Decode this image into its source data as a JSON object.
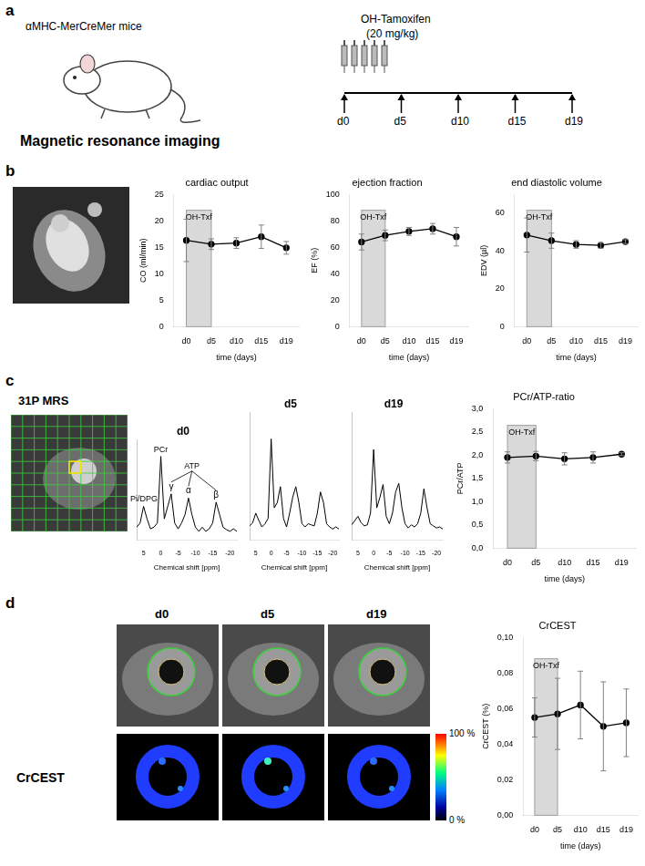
{
  "panel_labels": [
    "a",
    "b",
    "c",
    "d"
  ],
  "panel_a": {
    "mouse_label": "αMHC-MerCreMer mice",
    "method": "Magnetic resonance imaging",
    "drug": "OH-Tamoxifen",
    "dose": "(20 mg/kg)",
    "injections": 5,
    "timeline": [
      "d0",
      "d5",
      "d10",
      "d15",
      "d19"
    ]
  },
  "panel_c": {
    "label": "31P MRS"
  },
  "panel_d": {
    "label": "CrCEST",
    "image_days": [
      "d0",
      "d5",
      "d19"
    ],
    "colorbar": {
      "range": [
        0,
        100
      ],
      "ticks": [
        {
          "value": 0,
          "label": "0 %"
        },
        {
          "value": 100,
          "label": "100 %"
        }
      ]
    }
  },
  "chart_data": [
    {
      "type": "line",
      "title": "cardiac output",
      "categories": [
        "d0",
        "d5",
        "d10",
        "d15",
        "d19"
      ],
      "values": [
        16.3,
        15.6,
        15.8,
        17.0,
        14.9
      ],
      "errors": [
        4.0,
        1.0,
        1.0,
        2.2,
        1.2
      ],
      "x_label": "time (days)",
      "y_label": "CO (ml/min)",
      "ylim": [
        0,
        25
      ],
      "yticks": [
        0,
        5,
        10,
        15,
        20,
        25
      ],
      "grid": false,
      "color": "#000000",
      "marker": "circle",
      "annotations": [
        {
          "text": "OH-Txf",
          "from": "d0",
          "to": "d5"
        }
      ]
    },
    {
      "type": "line",
      "title": "ejection fraction",
      "categories": [
        "d0",
        "d5",
        "d10",
        "d15",
        "d19"
      ],
      "values": [
        64,
        69,
        72,
        74,
        68
      ],
      "errors": [
        6,
        4,
        3,
        4,
        7
      ],
      "x_label": "time (days)",
      "y_label": "EF (%)",
      "ylim": [
        0,
        100
      ],
      "yticks": [
        0,
        20,
        40,
        60,
        80,
        100
      ],
      "grid": false,
      "color": "#000000",
      "marker": "circle",
      "annotations": [
        {
          "text": "OH-Txf",
          "from": "d0",
          "to": "d5"
        }
      ]
    },
    {
      "type": "line",
      "title": "end diastolic volume",
      "categories": [
        "d0",
        "d5",
        "d10",
        "d15",
        "d19"
      ],
      "values": [
        48.5,
        45.5,
        43.5,
        43,
        45
      ],
      "errors": [
        9,
        4,
        2,
        1.5,
        1
      ],
      "x_label": "time (days)",
      "y_label": "EDV (µl)",
      "ylim": [
        0,
        70
      ],
      "yticks": [
        0,
        20,
        40,
        60
      ],
      "grid": false,
      "color": "#000000",
      "marker": "circle",
      "annotations": [
        {
          "text": "OH-Txf",
          "from": "d0",
          "to": "d5"
        }
      ]
    },
    {
      "type": "line",
      "title": "d0",
      "x": [
        7,
        6,
        5,
        4,
        3,
        2,
        1,
        0,
        -1,
        -2,
        -3,
        -4,
        -5,
        -6,
        -7,
        -8,
        -9,
        -10,
        -11,
        -12,
        -13,
        -14,
        -15,
        -16,
        -17,
        -18,
        -19,
        -20,
        -21,
        -22
      ],
      "values": [
        0.5,
        1,
        3,
        1.5,
        0.3,
        0.5,
        1,
        9,
        1.5,
        3,
        4.5,
        1,
        0.3,
        1,
        2,
        4,
        2,
        0.5,
        0,
        0.5,
        0,
        0.3,
        1,
        3.5,
        2,
        0.5,
        0.2,
        0,
        0.3,
        0
      ],
      "x_label": "Chemical shift [ppm]",
      "xlim": [
        7,
        -22
      ],
      "xticks": [
        5,
        0,
        -5,
        -10,
        -15,
        -20
      ],
      "ylim": [
        -1,
        11
      ],
      "tick_labels": "x",
      "grid": false,
      "color": "#000000",
      "annotations": [
        {
          "text": "Pi/DPG",
          "x": 5
        },
        {
          "text": "PCr",
          "x": 0
        },
        {
          "text": "γ",
          "x": -3
        },
        {
          "text": "α",
          "x": -8
        },
        {
          "text": "β",
          "x": -16
        },
        {
          "text": "ATP",
          "x": [
            -3,
            -8,
            -16
          ]
        }
      ]
    },
    {
      "type": "line",
      "title": "d5",
      "x": [
        7,
        6,
        5,
        4,
        3,
        2,
        1,
        0,
        -1,
        -2,
        -3,
        -4,
        -5,
        -6,
        -7,
        -8,
        -9,
        -10,
        -11,
        -12,
        -13,
        -14,
        -15,
        -16,
        -17,
        -18,
        -19,
        -20,
        -21,
        -22
      ],
      "values": [
        0.3,
        0.6,
        1.5,
        0.8,
        0.2,
        0.5,
        1,
        8.5,
        2,
        2.5,
        4,
        1,
        0.2,
        1.5,
        3,
        4,
        2.5,
        0.5,
        0.2,
        0.5,
        0.4,
        0.3,
        1.5,
        3.5,
        2.5,
        0.5,
        0.2,
        0,
        0.2,
        0
      ],
      "x_label": "Chemical shift [ppm]",
      "xlim": [
        7,
        -22
      ],
      "xticks": [
        5,
        0,
        -5,
        -10,
        -15,
        -20
      ],
      "ylim": [
        -1,
        11
      ],
      "tick_labels": "x",
      "grid": false,
      "color": "#000000"
    },
    {
      "type": "line",
      "title": "d19",
      "x": [
        7,
        6,
        5,
        4,
        3,
        2,
        1,
        0,
        -1,
        -2,
        -3,
        -4,
        -5,
        -6,
        -7,
        -8,
        -9,
        -10,
        -11,
        -12,
        -13,
        -14,
        -15,
        -16,
        -17,
        -18,
        -19,
        -20,
        -21,
        -22
      ],
      "values": [
        0.4,
        0.8,
        1.2,
        0.6,
        0.3,
        0.4,
        1.5,
        7.5,
        2,
        3,
        4.2,
        1.2,
        0.5,
        1.5,
        3.5,
        4.3,
        2,
        0.5,
        0.1,
        0.4,
        0.2,
        0.5,
        1.5,
        3.8,
        2,
        0.5,
        0.3,
        0.1,
        0.2,
        0
      ],
      "x_label": "Chemical shift [ppm]",
      "xlim": [
        7,
        -22
      ],
      "xticks": [
        5,
        0,
        -5,
        -10,
        -15,
        -20
      ],
      "ylim": [
        -1,
        11
      ],
      "tick_labels": "x",
      "grid": false,
      "color": "#000000"
    },
    {
      "type": "line",
      "title": "PCr/ATP-ratio",
      "categories": [
        "d0",
        "d5",
        "d10",
        "d15",
        "d19"
      ],
      "values": [
        1.95,
        1.98,
        1.92,
        1.95,
        2.02
      ],
      "errors": [
        0.12,
        0.1,
        0.13,
        0.12,
        0.03
      ],
      "x_label": "time (days)",
      "y_label": "PCr/ATP",
      "ylim": [
        0,
        3
      ],
      "yticks": [
        {
          "value": 0,
          "label": "0,0"
        },
        {
          "value": 0.5,
          "label": "0,5"
        },
        {
          "value": 1,
          "label": "1,0"
        },
        {
          "value": 1.5,
          "label": "1,5"
        },
        {
          "value": 2,
          "label": "2,0"
        },
        {
          "value": 2.5,
          "label": "2,5"
        },
        {
          "value": 3,
          "label": "3,0"
        }
      ],
      "grid": false,
      "color": "#000000",
      "marker": "circle",
      "annotations": [
        {
          "text": "OH-Txf",
          "from": "d0",
          "to": "d5"
        }
      ]
    },
    {
      "type": "line",
      "title": "CrCEST",
      "categories": [
        "d0",
        "d5",
        "d10",
        "d15",
        "d19"
      ],
      "values": [
        0.055,
        0.057,
        0.062,
        0.05,
        0.052
      ],
      "errors": [
        0.011,
        0.02,
        0.019,
        0.025,
        0.019
      ],
      "x_label": "time (days)",
      "y_label": "CrCEST (%)",
      "ylim": [
        0,
        0.1
      ],
      "yticks": [
        {
          "value": 0,
          "label": "0,00"
        },
        {
          "value": 0.02,
          "label": "0,02"
        },
        {
          "value": 0.04,
          "label": "0,04"
        },
        {
          "value": 0.06,
          "label": "0,06"
        },
        {
          "value": 0.08,
          "label": "0,08"
        },
        {
          "value": 0.1,
          "label": "0,10"
        }
      ],
      "grid": false,
      "color": "#000000",
      "marker": "circle",
      "annotations": [
        {
          "text": "OH-Txf",
          "from": "d0",
          "to": "d5"
        }
      ]
    }
  ]
}
